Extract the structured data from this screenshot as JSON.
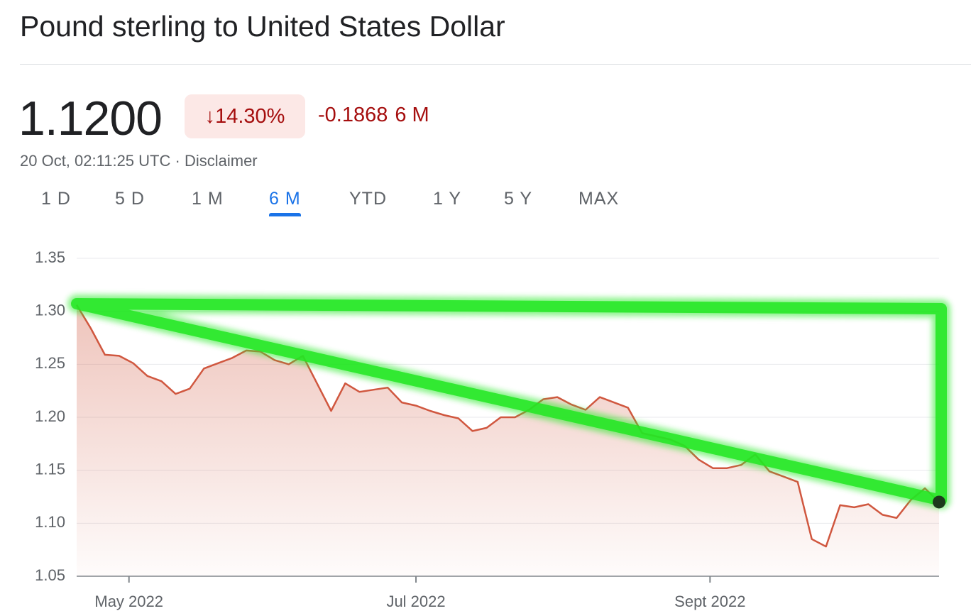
{
  "header": {
    "title": "Pound sterling to United States Dollar",
    "price": "1.1200",
    "change_percent": "↓14.30%",
    "change_value": "-0.1868",
    "change_period": "6 M",
    "timestamp": "20 Oct, 02:11:25 UTC",
    "separator": "·",
    "disclaimer": "Disclaimer"
  },
  "tabs": {
    "items": [
      "1 D",
      "5 D",
      "1 M",
      "6 M",
      "YTD",
      "1 Y",
      "5 Y",
      "MAX"
    ],
    "active": 3
  },
  "chart_data": {
    "type": "area",
    "color": "#d0573f",
    "values": [
      1.306,
      1.284,
      1.259,
      1.258,
      1.251,
      1.239,
      1.234,
      1.222,
      1.227,
      1.246,
      1.251,
      1.256,
      1.263,
      1.262,
      1.254,
      1.25,
      1.258,
      1.232,
      1.206,
      1.232,
      1.224,
      1.226,
      1.228,
      1.214,
      1.211,
      1.206,
      1.202,
      1.199,
      1.187,
      1.19,
      1.2,
      1.2,
      1.207,
      1.217,
      1.219,
      1.212,
      1.207,
      1.219,
      1.214,
      1.209,
      1.185,
      1.182,
      1.179,
      1.173,
      1.16,
      1.152,
      1.152,
      1.155,
      1.165,
      1.149,
      1.144,
      1.139,
      1.085,
      1.078,
      1.117,
      1.115,
      1.118,
      1.108,
      1.105,
      1.122,
      1.133,
      1.12
    ],
    "xlim": [
      0,
      61
    ],
    "xticks": [
      {
        "value": 3.7,
        "label": "May 2022"
      },
      {
        "value": 24.0,
        "label": "Jul 2022"
      },
      {
        "value": 44.8,
        "label": "Sept 2022"
      }
    ],
    "ylim": [
      1.05,
      1.35
    ],
    "yticks": [
      1.05,
      {
        "value": 1.1,
        "label": "1.10"
      },
      1.15,
      {
        "value": 1.2,
        "label": "1.20"
      },
      1.25,
      {
        "value": 1.3,
        "label": "1.30"
      },
      1.35
    ],
    "grid": true
  }
}
